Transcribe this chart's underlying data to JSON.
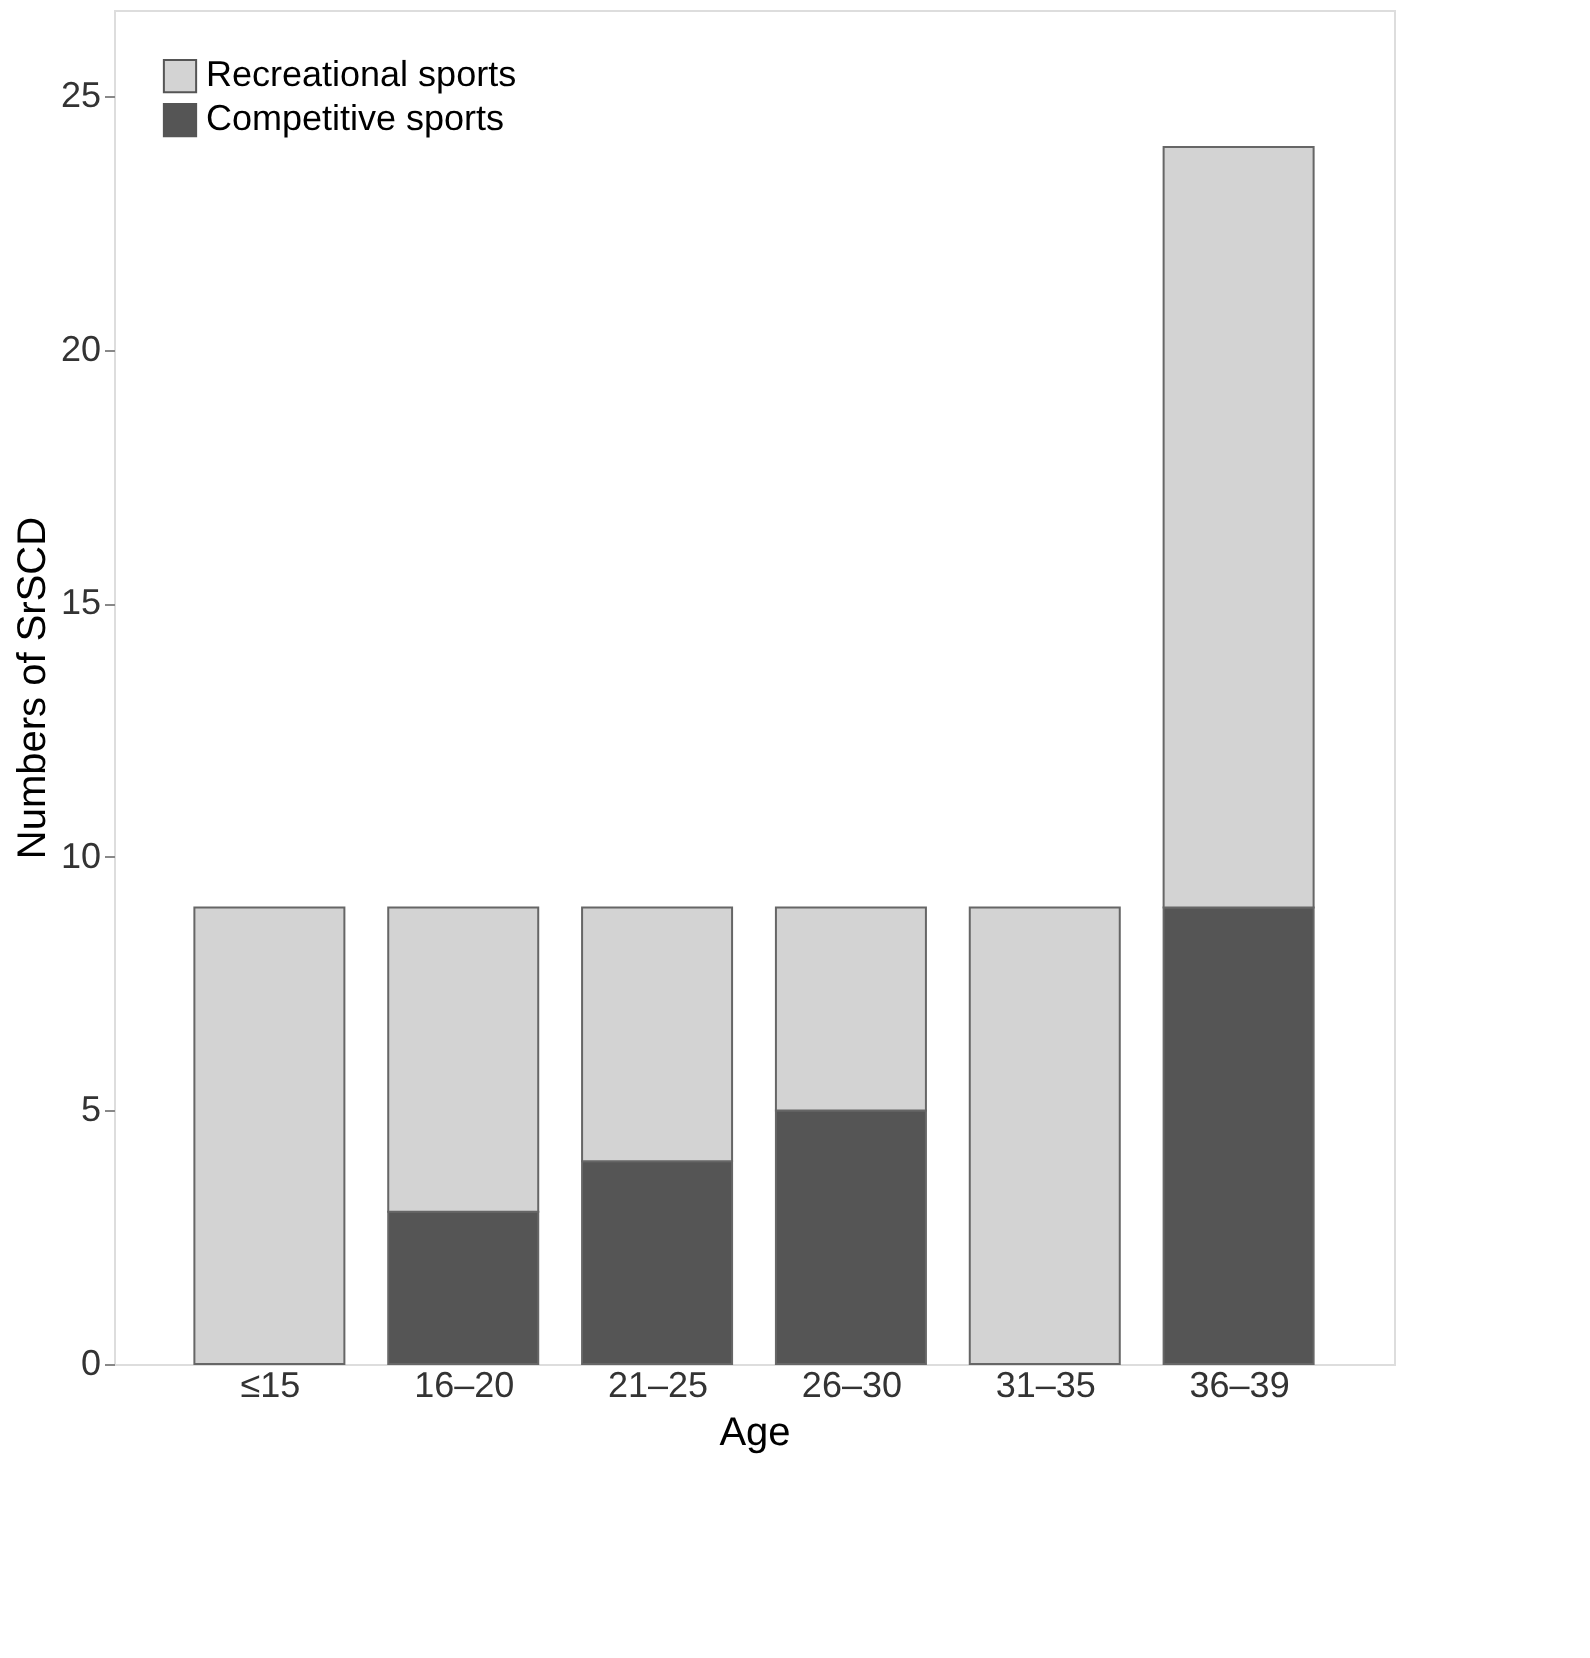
{
  "chart_data": {
    "type": "bar",
    "stacked": true,
    "xlabel": "Age",
    "ylabel": "Numbers of SrSCD",
    "categories": [
      "≤15",
      "16–20",
      "21–25",
      "26–30",
      "31–35",
      "36–39"
    ],
    "series": [
      {
        "name": "Competitive sports",
        "color": "#555555",
        "values": [
          0,
          3,
          4,
          5,
          0,
          9
        ]
      },
      {
        "name": "Recreational sports",
        "color": "#d3d3d3",
        "values": [
          9,
          6,
          5,
          4,
          9,
          15
        ]
      }
    ],
    "ylim": [
      0,
      26.7
    ],
    "yticks": [
      0,
      5,
      10,
      15,
      20,
      25
    ],
    "grid": false,
    "legend": "top left"
  }
}
